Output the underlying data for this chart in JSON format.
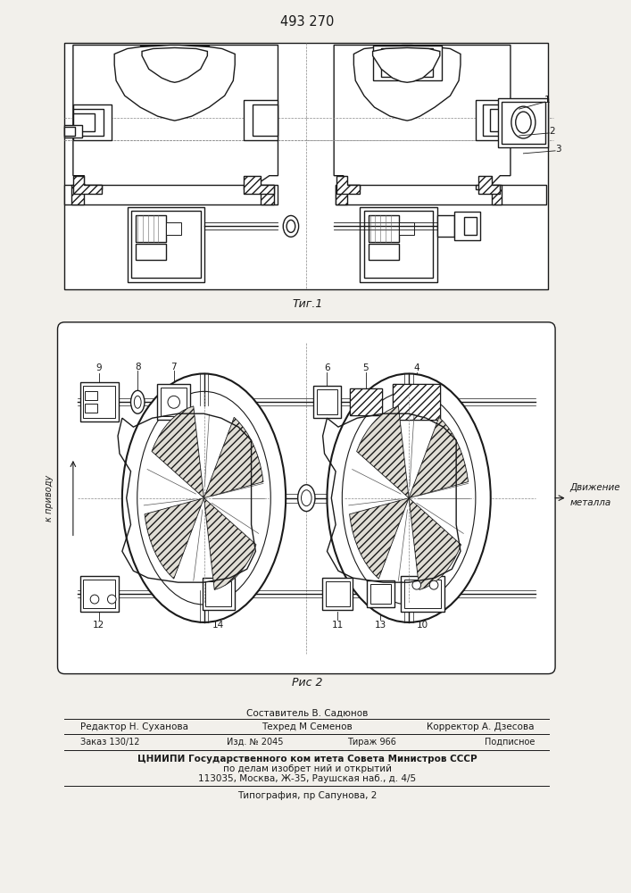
{
  "patent_number": "493 270",
  "page_bg": "#f2f0eb",
  "fig1_label": "Τиг.1",
  "fig2_label": "Рис 2",
  "footer_compiler": "Составитель В. Садюнов",
  "footer_editor": "Редактор Н. Суханова",
  "footer_tech": "Техред М Семенов",
  "footer_corrector": "Корректор А. Дзесова",
  "footer_order": "Заказ 130/12",
  "footer_pub": "Изд. № 2045",
  "footer_circulation": "Тираж 966",
  "footer_subscription": "Подписное",
  "footer_institute": "ЦНИИПИ Государственного ком итета Совета Министров СССР",
  "footer_affairs": "по делам изобрет ний и открытий",
  "footer_address": "113035, Москва, Ж-35, Раушская наб., д. 4/5",
  "footer_print": "Типография, пр Сапунова, 2"
}
